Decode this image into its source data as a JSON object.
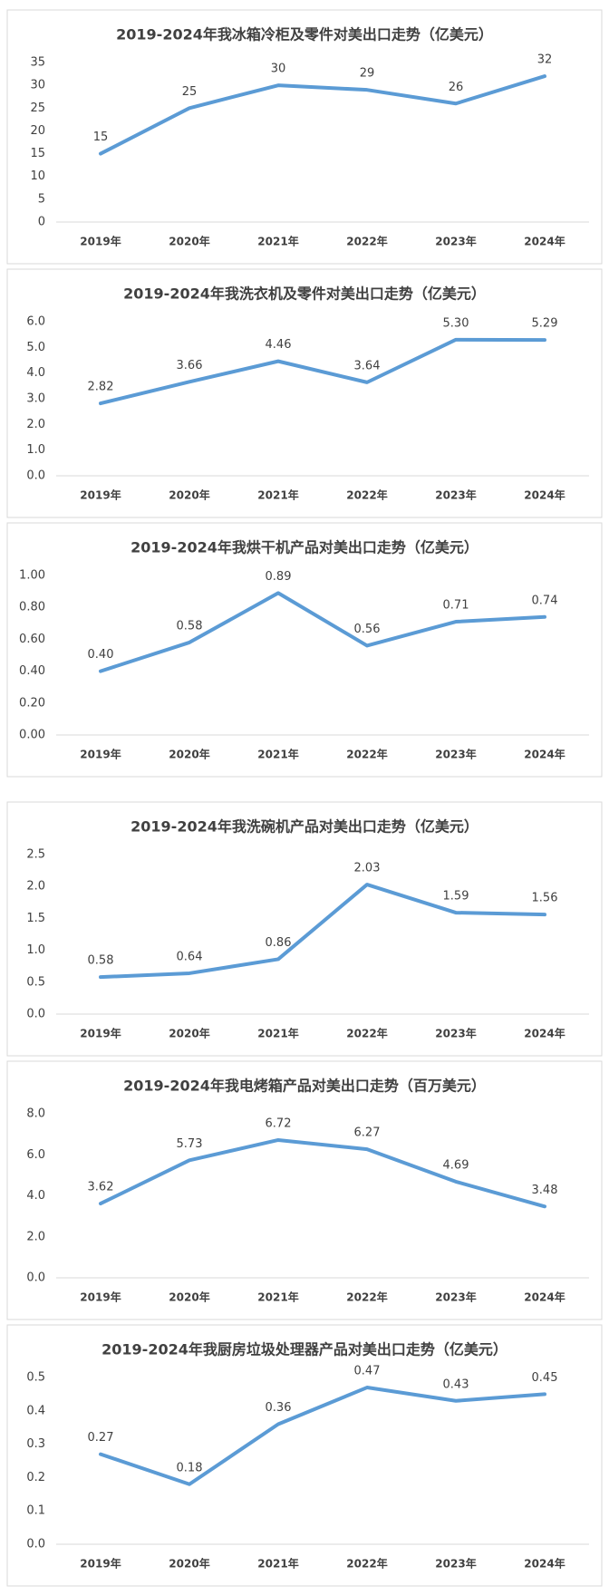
{
  "chart_data": [
    {
      "type": "line",
      "title": "2019-2024年我冰箱冷柜及零件对美出口走势（亿美元）",
      "categories": [
        "2019年",
        "2020年",
        "2021年",
        "2022年",
        "2023年",
        "2024年"
      ],
      "series": [
        {
          "color": "#5b9bd5",
          "values": [
            15,
            25,
            30,
            29,
            26,
            32
          ]
        }
      ],
      "ylim": [
        0,
        35
      ],
      "yticks": [
        0,
        5,
        10,
        15,
        20,
        25,
        30,
        35
      ]
    },
    {
      "type": "line",
      "title": "2019-2024年我洗衣机及零件对美出口走势（亿美元）",
      "categories": [
        "2019年",
        "2020年",
        "2021年",
        "2022年",
        "2023年",
        "2024年"
      ],
      "series": [
        {
          "color": "#5b9bd5",
          "values": [
            2.82,
            3.66,
            4.46,
            3.64,
            5.3,
            5.29
          ],
          "value_labels": [
            "2.82",
            "3.66",
            "4.46",
            "3.64",
            "5.30",
            "5.29"
          ]
        }
      ],
      "ylim": [
        0,
        6
      ],
      "yticks": [
        {
          "value": 0,
          "label": "0.0"
        },
        {
          "value": 1,
          "label": "1.0"
        },
        {
          "value": 2,
          "label": "2.0"
        },
        {
          "value": 3,
          "label": "3.0"
        },
        {
          "value": 4,
          "label": "4.0"
        },
        {
          "value": 5,
          "label": "5.0"
        },
        {
          "value": 6,
          "label": "6.0"
        }
      ]
    },
    {
      "type": "line",
      "title": "2019-2024年我烘干机产品对美出口走势（亿美元）",
      "categories": [
        "2019年",
        "2020年",
        "2021年",
        "2022年",
        "2023年",
        "2024年"
      ],
      "series": [
        {
          "color": "#5b9bd5",
          "values": [
            0.4,
            0.58,
            0.89,
            0.56,
            0.71,
            0.74
          ],
          "value_labels": [
            "0.40",
            "0.58",
            "0.89",
            "0.56",
            "0.71",
            "0.74"
          ]
        }
      ],
      "ylim": [
        0,
        1
      ],
      "yticks": [
        {
          "value": 0,
          "label": "0.00"
        },
        {
          "value": 0.2,
          "label": "0.20"
        },
        {
          "value": 0.4,
          "label": "0.40"
        },
        {
          "value": 0.6,
          "label": "0.60"
        },
        {
          "value": 0.8,
          "label": "0.80"
        },
        {
          "value": 1,
          "label": "1.00"
        }
      ]
    },
    {
      "type": "line",
      "title": "2019-2024年我洗碗机产品对美出口走势（亿美元）",
      "categories": [
        "2019年",
        "2020年",
        "2021年",
        "2022年",
        "2023年",
        "2024年"
      ],
      "series": [
        {
          "color": "#5b9bd5",
          "values": [
            0.58,
            0.64,
            0.86,
            2.03,
            1.59,
            1.56
          ]
        }
      ],
      "ylim": [
        0,
        2.5
      ],
      "yticks": [
        {
          "value": 0,
          "label": "0.0"
        },
        0.5,
        {
          "value": 1,
          "label": "1.0"
        },
        1.5,
        {
          "value": 2,
          "label": "2.0"
        },
        2.5
      ]
    },
    {
      "type": "line",
      "title": "2019-2024年我电烤箱产品对美出口走势（百万美元）",
      "categories": [
        "2019年",
        "2020年",
        "2021年",
        "2022年",
        "2023年",
        "2024年"
      ],
      "series": [
        {
          "color": "#5b9bd5",
          "values": [
            3.62,
            5.73,
            6.72,
            6.27,
            4.69,
            3.48
          ]
        }
      ],
      "ylim": [
        0,
        8
      ],
      "yticks": [
        {
          "value": 0,
          "label": "0.0"
        },
        {
          "value": 2,
          "label": "2.0"
        },
        {
          "value": 4,
          "label": "4.0"
        },
        {
          "value": 6,
          "label": "6.0"
        },
        {
          "value": 8,
          "label": "8.0"
        }
      ]
    },
    {
      "type": "line",
      "title": "2019-2024年我厨房垃圾处理器产品对美出口走势（亿美元）",
      "categories": [
        "2019年",
        "2020年",
        "2021年",
        "2022年",
        "2023年",
        "2024年"
      ],
      "series": [
        {
          "color": "#5b9bd5",
          "values": [
            0.27,
            0.18,
            0.36,
            0.47,
            0.43,
            0.45
          ]
        }
      ],
      "ylim": [
        0,
        0.5
      ],
      "yticks": [
        {
          "value": 0,
          "label": "0.0"
        },
        0.1,
        0.2,
        0.3,
        0.4,
        0.5
      ]
    }
  ]
}
